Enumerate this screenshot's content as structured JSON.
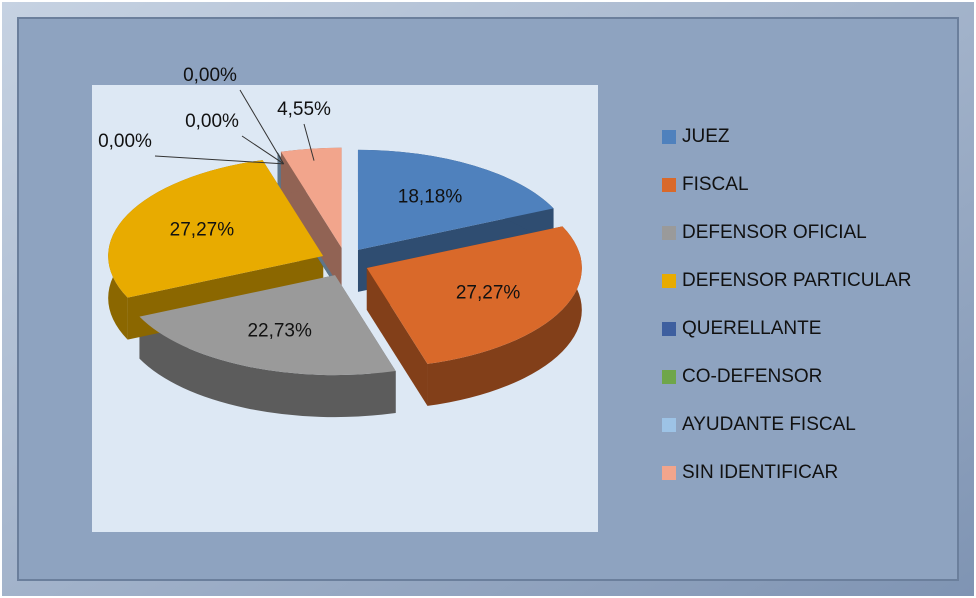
{
  "chart_data": {
    "type": "pie3d",
    "categories": [
      "JUEZ",
      "FISCAL",
      "DEFENSOR OFICIAL",
      "DEFENSOR PARTICULAR",
      "QUERELLANTE",
      "CO-DEFENSOR",
      "AYUDANTE FISCAL",
      "SIN IDENTIFICAR"
    ],
    "values": [
      18.18,
      27.27,
      22.73,
      27.27,
      0,
      0,
      0,
      4.55
    ],
    "value_labels": [
      "18,18%",
      "27,27%",
      "22,73%",
      "27,27%",
      "0,00%",
      "0,00%",
      "0,00%",
      "4,55%"
    ],
    "colors": [
      "#4f81bd",
      "#d9692a",
      "#9a9a9a",
      "#e8ab00",
      "#3e5f9f",
      "#6fa64a",
      "#9dc3e6",
      "#f2a58c"
    ],
    "legend": "right"
  }
}
